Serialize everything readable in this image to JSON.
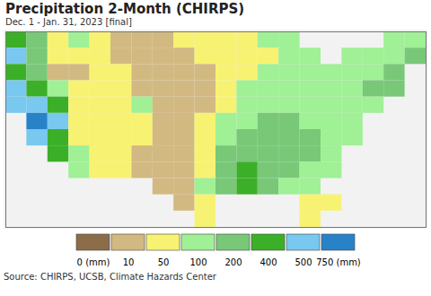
{
  "chart_data": {
    "type": "heatmap",
    "title": "Precipitation 2-Month (CHIRPS)",
    "subtitle": "Dec. 1 - Jan. 31, 2023 [final]",
    "source": "Source: CHIRPS, UCSB, Climate Hazards Center",
    "tick_labels": false,
    "xlim": [
      -125,
      -65
    ],
    "ylim": [
      25,
      49
    ],
    "x": [
      -125,
      -122,
      -119,
      -116,
      -113,
      -110,
      -107,
      -104,
      -101,
      -98,
      -95,
      -92,
      -89,
      -86,
      -83,
      -80,
      -77,
      -74,
      -71,
      -68,
      -65
    ],
    "y": [
      49,
      47,
      45,
      43,
      41,
      39,
      37,
      35,
      33,
      31,
      29,
      27,
      25
    ],
    "values": [
      [
        450,
        300,
        75,
        150,
        75,
        30,
        30,
        30,
        75,
        75,
        75,
        75,
        150,
        150,
        null,
        null,
        null,
        null,
        150,
        150
      ],
      [
        600,
        300,
        75,
        75,
        75,
        30,
        30,
        30,
        30,
        75,
        75,
        75,
        75,
        150,
        150,
        null,
        150,
        150,
        150,
        300
      ],
      [
        450,
        300,
        30,
        30,
        75,
        75,
        30,
        30,
        30,
        30,
        75,
        75,
        150,
        150,
        150,
        150,
        150,
        150,
        300,
        null
      ],
      [
        600,
        450,
        150,
        75,
        75,
        75,
        30,
        30,
        30,
        30,
        75,
        150,
        150,
        150,
        150,
        150,
        150,
        300,
        300,
        null
      ],
      [
        600,
        600,
        450,
        75,
        75,
        75,
        150,
        30,
        30,
        30,
        75,
        150,
        150,
        150,
        150,
        150,
        150,
        150,
        null,
        null
      ],
      [
        null,
        800,
        600,
        75,
        75,
        75,
        75,
        30,
        30,
        75,
        150,
        150,
        300,
        300,
        150,
        150,
        150,
        null,
        null,
        null
      ],
      [
        null,
        600,
        450,
        75,
        75,
        75,
        75,
        30,
        30,
        75,
        150,
        300,
        300,
        300,
        300,
        150,
        150,
        null,
        null,
        null
      ],
      [
        null,
        null,
        450,
        150,
        75,
        75,
        30,
        30,
        30,
        75,
        300,
        300,
        300,
        300,
        300,
        150,
        null,
        null,
        null,
        null
      ],
      [
        null,
        null,
        null,
        150,
        75,
        75,
        30,
        30,
        30,
        75,
        300,
        450,
        300,
        300,
        150,
        150,
        null,
        null,
        null,
        null
      ],
      [
        null,
        null,
        null,
        null,
        null,
        null,
        null,
        30,
        30,
        150,
        300,
        450,
        300,
        150,
        150,
        null,
        null,
        null,
        null,
        null
      ],
      [
        null,
        null,
        null,
        null,
        null,
        null,
        null,
        null,
        30,
        75,
        null,
        null,
        null,
        null,
        75,
        75,
        null,
        null,
        null,
        null
      ],
      [
        null,
        null,
        null,
        null,
        null,
        null,
        null,
        null,
        null,
        75,
        null,
        null,
        null,
        null,
        75,
        null,
        null,
        null,
        null,
        null
      ]
    ],
    "color_bar": {
      "ticks": [
        {
          "value": 0,
          "label": "0 (mm)"
        },
        10,
        50,
        100,
        200,
        400,
        500,
        {
          "value": 750,
          "label": "750 (mm)"
        }
      ],
      "colors": [
        "#8b6d4a",
        "#d2b982",
        "#f8f272",
        "#a0f096",
        "#78c878",
        "#3caf28",
        "#78c8f0",
        "#2882c8"
      ]
    }
  }
}
